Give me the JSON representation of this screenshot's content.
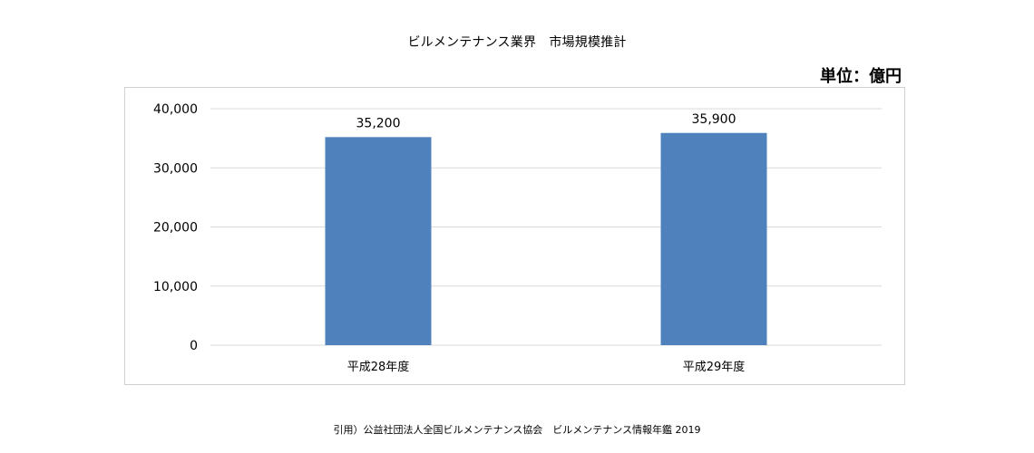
{
  "chart_data": {
    "type": "bar",
    "title": "ビルメンテナンス業界　市場規模推計",
    "unit": "単位：億円",
    "categories": [
      "平成28年度",
      "平成29年度"
    ],
    "values": [
      35200,
      35900
    ],
    "value_labels": [
      "35,200",
      "35,900"
    ],
    "yticks": [
      0,
      10000,
      20000,
      30000,
      40000
    ],
    "ytick_labels": [
      "0",
      "10,000",
      "20,000",
      "30,000",
      "40,000"
    ],
    "ylim": [
      0,
      40000
    ],
    "xlabel": "",
    "ylabel": "",
    "grid": true,
    "bar_color": "#4f81bd",
    "grid_color": "#d9d9d9"
  },
  "source": "引用）公益社団法人全国ビルメンテナンス協会　ビルメンテナンス情報年鑑 2019"
}
